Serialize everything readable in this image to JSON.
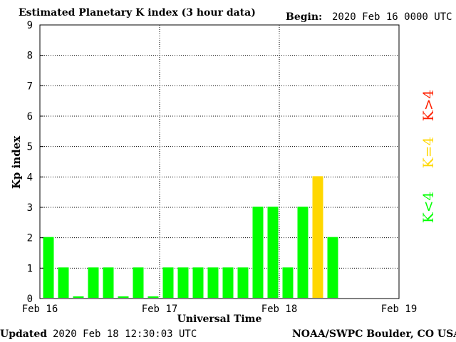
{
  "header": {
    "title": "Estimated Planetary K index (3 hour data)",
    "begin_label": "Begin:",
    "begin_value": "2020 Feb 16 0000 UTC"
  },
  "footer": {
    "updated_label": "Updated",
    "updated_value": "2020 Feb 18 12:30:03 UTC",
    "source": "NOAA/SWPC Boulder, CO USA"
  },
  "legend": {
    "low": "K<4",
    "mid": "K=4",
    "high": "K>4"
  },
  "colors": {
    "low": "#00ff00",
    "mid": "#ffd700",
    "high": "#ff2000",
    "grid": "#000000",
    "frame": "#000000"
  },
  "chart_data": {
    "type": "bar",
    "title": "Estimated Planetary K index (3 hour data)",
    "xlabel": "Universal Time",
    "ylabel": "Kp index",
    "ylim": [
      0,
      9
    ],
    "yticks": [
      "0",
      "1",
      "2",
      "3",
      "4",
      "5",
      "6",
      "7",
      "8",
      "9"
    ],
    "xticks": [
      "Feb 16",
      "Feb 17",
      "Feb 18",
      "Feb 19"
    ],
    "bins_total": 24,
    "values": [
      2,
      1,
      0,
      1,
      1,
      0,
      1,
      0,
      1,
      1,
      1,
      1,
      1,
      1,
      3,
      3,
      1,
      3,
      4,
      2
    ],
    "grid": true
  }
}
